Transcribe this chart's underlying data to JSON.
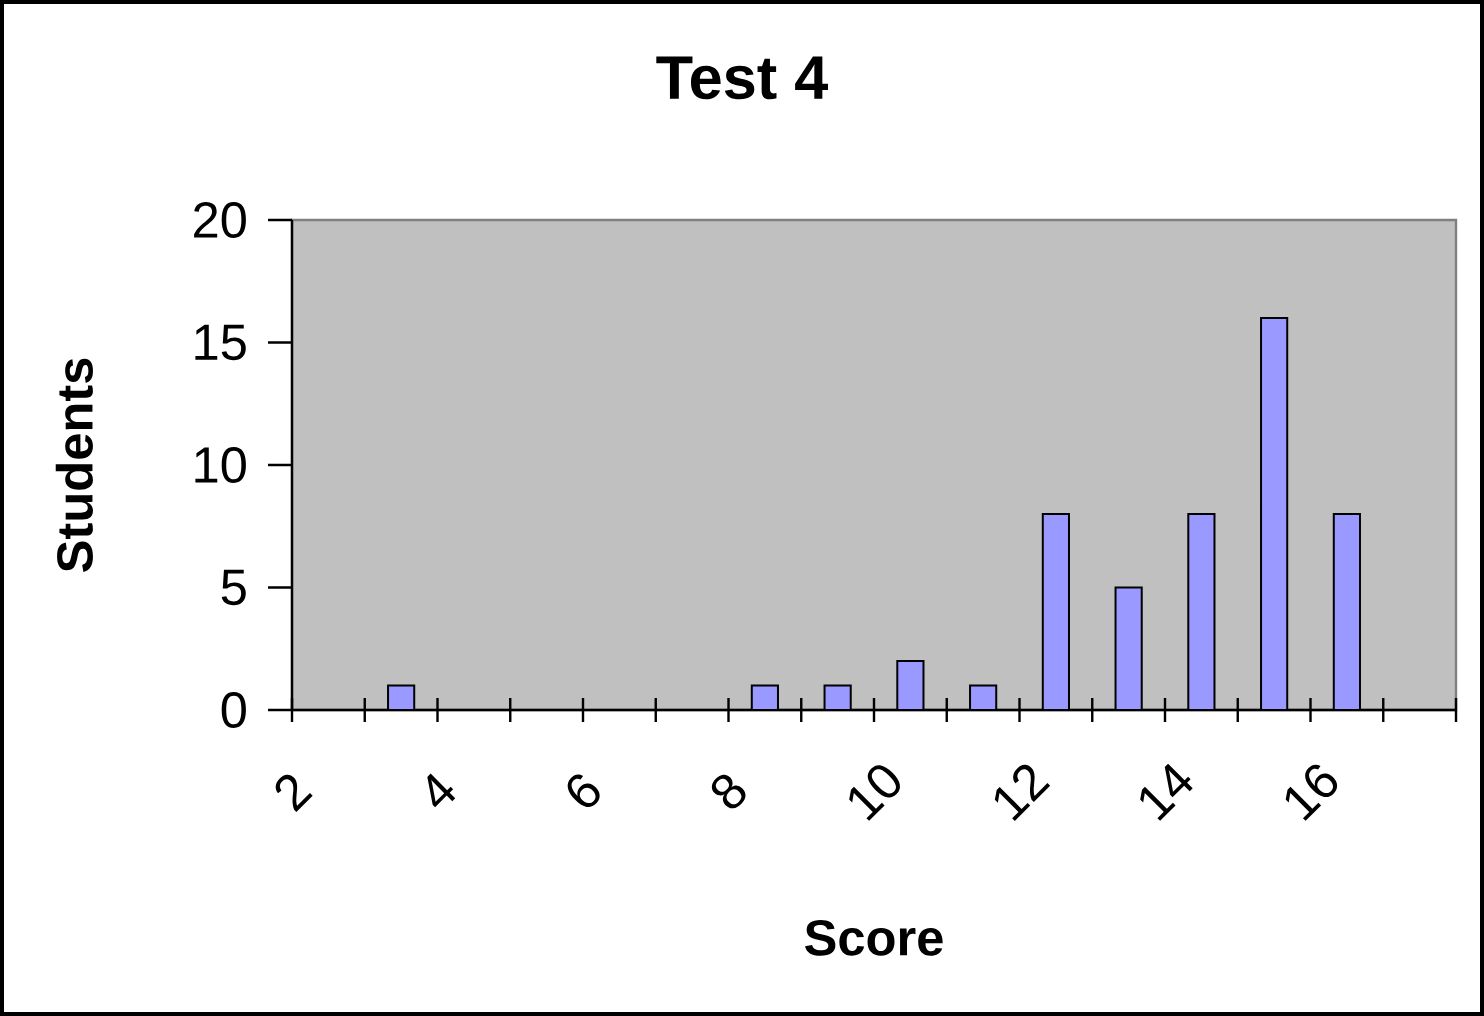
{
  "chart_data": {
    "type": "histogram",
    "title": "Test 4",
    "xlabel": "Score",
    "ylabel": "Students",
    "bins": [
      2,
      3,
      4,
      5,
      6,
      7,
      8,
      9,
      10,
      11,
      12,
      13,
      14,
      15,
      16,
      17,
      18
    ],
    "values": [
      0,
      1,
      0,
      0,
      0,
      0,
      1,
      1,
      2,
      1,
      8,
      5,
      8,
      16,
      8,
      0
    ],
    "color": "#9999ff",
    "xlim": [
      2,
      18
    ],
    "ylim": [
      0,
      20
    ],
    "xticks": [
      2,
      {
        "value": 3,
        "label": null
      },
      4,
      {
        "value": 5,
        "label": null
      },
      6,
      {
        "value": 7,
        "label": null
      },
      8,
      {
        "value": 9,
        "label": null
      },
      10,
      {
        "value": 11,
        "label": null
      },
      12,
      {
        "value": 13,
        "label": null
      },
      14,
      {
        "value": 15,
        "label": null
      },
      16,
      {
        "value": 17,
        "label": null
      },
      {
        "value": 18,
        "label": null
      }
    ],
    "yticks": [
      0,
      5,
      10,
      15,
      20
    ]
  }
}
